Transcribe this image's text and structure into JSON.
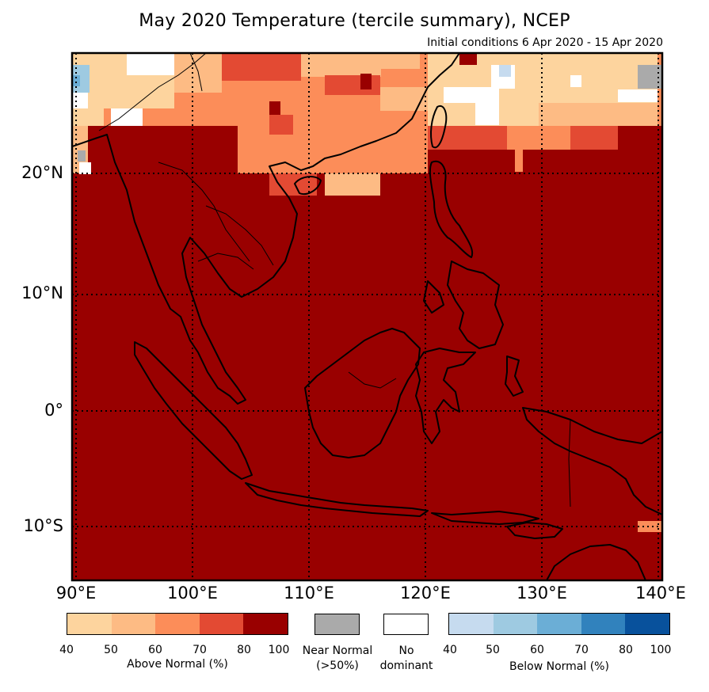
{
  "title": "May 2020 Temperature (tercile summary), NCEP",
  "subtitle": "Initial conditions 6 Apr 2020 - 15 Apr 2020",
  "map": {
    "lat_labels": [
      "20°N",
      "10°N",
      "0°",
      "10°S"
    ],
    "lon_labels": [
      "90°E",
      "100°E",
      "110°E",
      "120°E",
      "130°E",
      "140°E"
    ],
    "lat_range": [
      -14.5,
      30.5
    ],
    "lon_range": [
      89.5,
      140
    ],
    "colors": {
      "ocean_land_dominant": "#990000",
      "coastline": "#000000",
      "gridline": "#000000"
    }
  },
  "legend": {
    "above_normal": {
      "caption": "Above Normal (%)",
      "ticks": [
        "40",
        "50",
        "60",
        "70",
        "80",
        "100"
      ],
      "colors": [
        "#fdd49e",
        "#fdbb84",
        "#fc8d59",
        "#e34a33",
        "#990000"
      ]
    },
    "near_normal": {
      "caption_line1": "Near Normal",
      "caption_line2": "(>50%)",
      "color": "#aaaaaa"
    },
    "no_dominant": {
      "caption_line1": "No",
      "caption_line2": "dominant",
      "color": "#ffffff"
    },
    "below_normal": {
      "caption": "Below Normal (%)",
      "ticks": [
        "40",
        "50",
        "60",
        "70",
        "80",
        "100"
      ],
      "colors": [
        "#c6dbef",
        "#9ecae1",
        "#6baed6",
        "#3182bd",
        "#08519c"
      ]
    }
  }
}
